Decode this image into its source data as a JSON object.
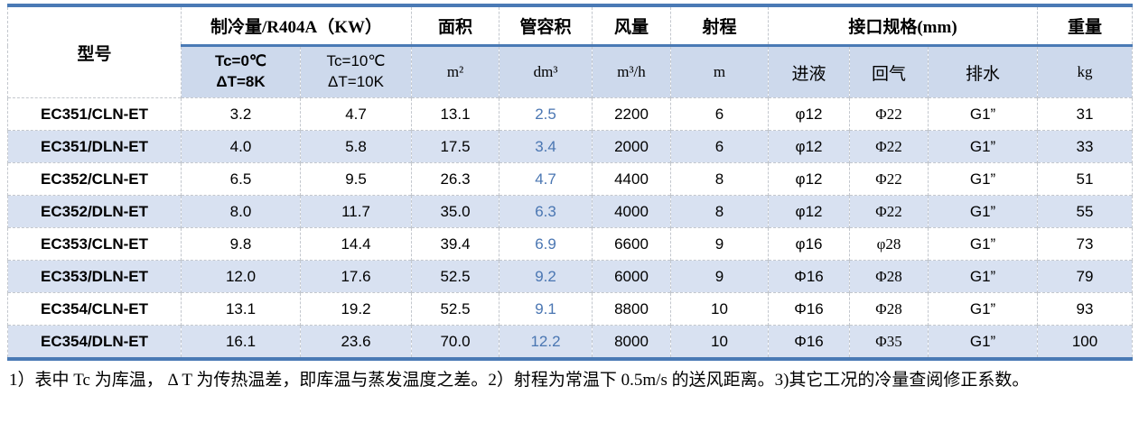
{
  "colors": {
    "accent_border": "#4a7ab5",
    "header_fill": "#cdd9ec",
    "row_alt_fill": "#d8e1f1",
    "volume_text": "#4a76b2",
    "grid_dash": "#c3c7cd"
  },
  "header": {
    "model": "型号",
    "cooling_group": "制冷量/R404A（KW）",
    "cond1_line1": "Tc=0℃",
    "cond1_line2": "ΔT=8K",
    "cond2_line1": "Tc=10℃",
    "cond2_line2": "ΔT=10K",
    "area": "面积",
    "area_unit": "m²",
    "tube_volume": "管容积",
    "tube_volume_unit": "dm³",
    "air_flow": "风量",
    "air_flow_unit": "m³/h",
    "throw": "射程",
    "throw_unit": "m",
    "interface_group": "接口规格(mm)",
    "liquid_inlet": "进液",
    "gas_return": "回气",
    "drain": "排水",
    "weight": "重量",
    "weight_unit": "kg"
  },
  "rows": [
    {
      "model": "EC351/CLN-ET",
      "tc0": "3.2",
      "tc10": "4.7",
      "area": "13.1",
      "volume": "2.5",
      "air": "2200",
      "throw": "6",
      "inlet": "φ12",
      "ret": "Φ22",
      "drain": "G1”",
      "weight": "31"
    },
    {
      "model": "EC351/DLN-ET",
      "tc0": "4.0",
      "tc10": "5.8",
      "area": "17.5",
      "volume": "3.4",
      "air": "2000",
      "throw": "6",
      "inlet": "φ12",
      "ret": "Φ22",
      "drain": "G1”",
      "weight": "33"
    },
    {
      "model": "EC352/CLN-ET",
      "tc0": "6.5",
      "tc10": "9.5",
      "area": "26.3",
      "volume": "4.7",
      "air": "4400",
      "throw": "8",
      "inlet": "φ12",
      "ret": "Φ22",
      "drain": "G1”",
      "weight": "51"
    },
    {
      "model": "EC352/DLN-ET",
      "tc0": "8.0",
      "tc10": "11.7",
      "area": "35.0",
      "volume": "6.3",
      "air": "4000",
      "throw": "8",
      "inlet": "φ12",
      "ret": "Φ22",
      "drain": "G1”",
      "weight": "55"
    },
    {
      "model": "EC353/CLN-ET",
      "tc0": "9.8",
      "tc10": "14.4",
      "area": "39.4",
      "volume": "6.9",
      "air": "6600",
      "throw": "9",
      "inlet": "φ16",
      "ret": "φ28",
      "drain": "G1”",
      "weight": "73"
    },
    {
      "model": "EC353/DLN-ET",
      "tc0": "12.0",
      "tc10": "17.6",
      "area": "52.5",
      "volume": "9.2",
      "air": "6000",
      "throw": "9",
      "inlet": "Φ16",
      "ret": "Φ28",
      "drain": "G1”",
      "weight": "79"
    },
    {
      "model": "EC354/CLN-ET",
      "tc0": "13.1",
      "tc10": "19.2",
      "area": "52.5",
      "volume": "9.1",
      "air": "8800",
      "throw": "10",
      "inlet": "Φ16",
      "ret": "Φ28",
      "drain": "G1”",
      "weight": "93"
    },
    {
      "model": "EC354/DLN-ET",
      "tc0": "16.1",
      "tc10": "23.6",
      "area": "70.0",
      "volume": "12.2",
      "air": "8000",
      "throw": "10",
      "inlet": "Φ16",
      "ret": "Φ35",
      "drain": "G1”",
      "weight": "100"
    }
  ],
  "footnote": "1）表中 Tc 为库温， Δ T 为传热温差，即库温与蒸发温度之差。2）射程为常温下 0.5m/s 的送风距离。3)其它工况的冷量查阅修正系数。"
}
